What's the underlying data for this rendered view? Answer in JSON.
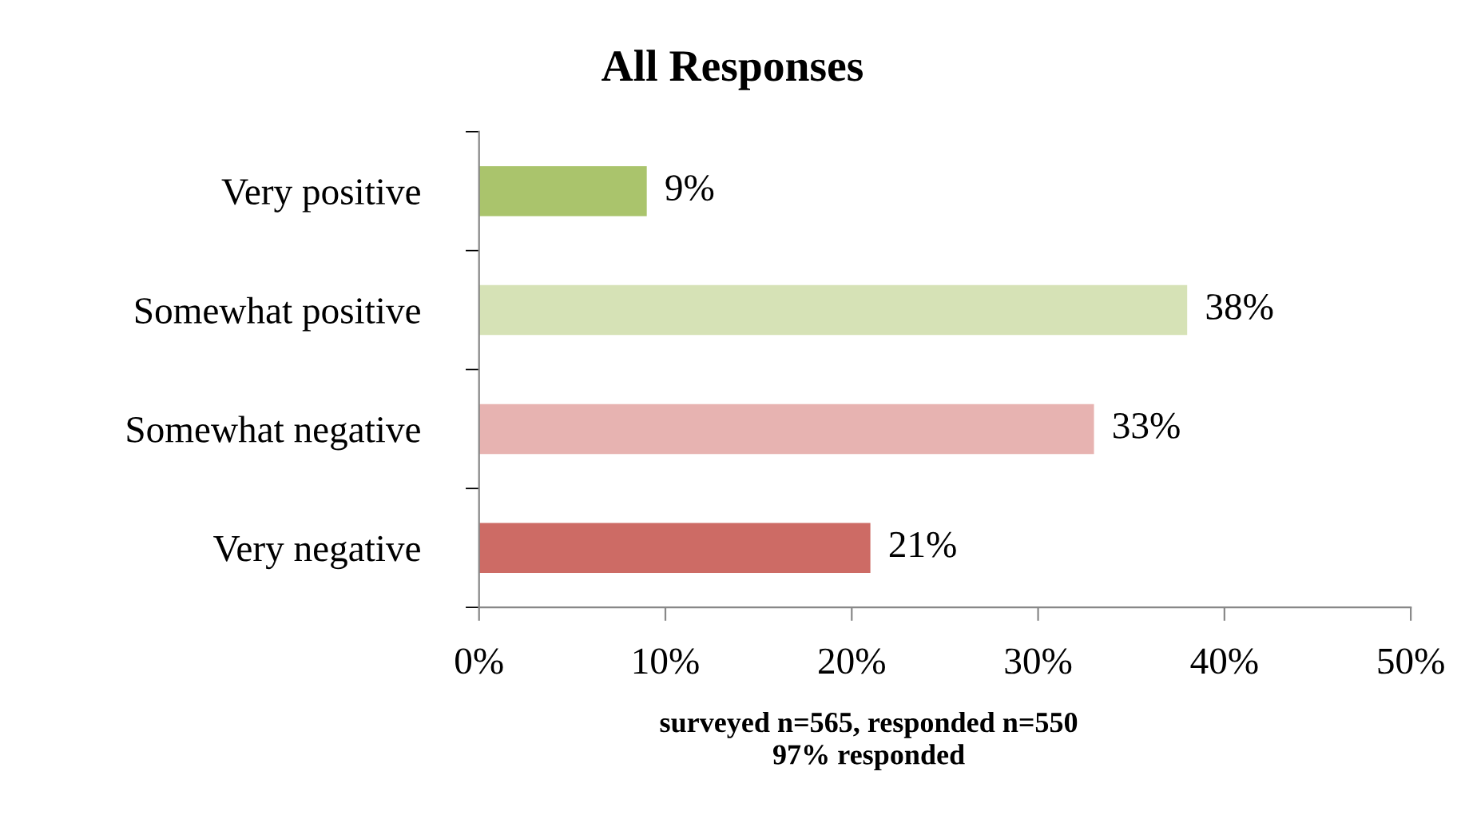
{
  "chart_data": {
    "type": "bar",
    "orientation": "horizontal",
    "title": "All Responses",
    "categories": [
      "Very positive",
      "Somewhat positive",
      "Somewhat negative",
      "Very negative"
    ],
    "values": [
      9,
      38,
      33,
      21
    ],
    "colors": [
      "#aac46c",
      "#d6e2b6",
      "#e7b3b1",
      "#cd6b65"
    ],
    "value_labels": [
      "9%",
      "38%",
      "33%",
      "21%"
    ],
    "xlim": [
      0,
      50
    ],
    "xticks": [
      {
        "value": 0,
        "label": "0%"
      },
      {
        "value": 10,
        "label": "10%"
      },
      {
        "value": 20,
        "label": "20%"
      },
      {
        "value": 30,
        "label": "30%"
      },
      {
        "value": 40,
        "label": "40%"
      },
      {
        "value": 50,
        "label": "50%"
      }
    ],
    "grid": false,
    "legend": false,
    "annotations": [
      "surveyed n=565, responded n=550\n97% responded"
    ]
  }
}
